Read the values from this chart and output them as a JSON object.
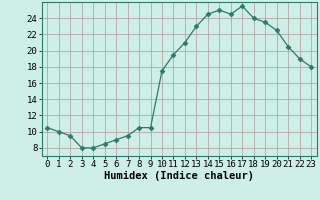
{
  "x": [
    0,
    1,
    2,
    3,
    4,
    5,
    6,
    7,
    8,
    9,
    10,
    11,
    12,
    13,
    14,
    15,
    16,
    17,
    18,
    19,
    20,
    21,
    22,
    23
  ],
  "y": [
    10.5,
    10.0,
    9.5,
    8.0,
    8.0,
    8.5,
    9.0,
    9.5,
    10.5,
    10.5,
    17.5,
    19.5,
    21.0,
    23.0,
    24.5,
    25.0,
    24.5,
    25.5,
    24.0,
    23.5,
    22.5,
    20.5,
    19.0,
    18.0
  ],
  "line_color": "#2d7a6a",
  "marker": "D",
  "marker_size": 2.5,
  "bg_color": "#ceeee8",
  "grid_color": "#b09898",
  "xlabel": "Humidex (Indice chaleur)",
  "xlim": [
    -0.5,
    23.5
  ],
  "ylim": [
    7,
    26
  ],
  "yticks": [
    8,
    10,
    12,
    14,
    16,
    18,
    20,
    22,
    24
  ],
  "xtick_labels": [
    "0",
    "1",
    "2",
    "3",
    "4",
    "5",
    "6",
    "7",
    "8",
    "9",
    "10",
    "11",
    "12",
    "13",
    "14",
    "15",
    "16",
    "17",
    "18",
    "19",
    "20",
    "21",
    "22",
    "23"
  ],
  "tick_fontsize": 6.5,
  "xlabel_fontsize": 7.5
}
